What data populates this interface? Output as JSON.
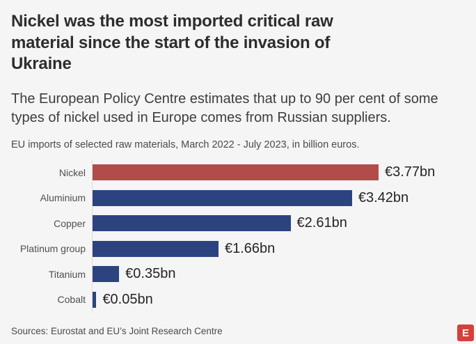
{
  "header": {
    "title": "Nickel was the most imported critical raw material since the start of the invasion of Ukraine",
    "subtitle": "The European Policy Centre estimates that up to 90 per cent of some types of nickel used in Europe comes from Russian suppliers.",
    "note": "EU imports of selected raw materials, March 2022 - July 2023, in billion euros."
  },
  "chart_data": {
    "type": "bar",
    "orientation": "horizontal",
    "categories": [
      "Nickel",
      "Aluminium",
      "Copper",
      "Platinum group",
      "Titanium",
      "Cobalt"
    ],
    "values": [
      3.77,
      3.42,
      2.61,
      1.66,
      0.35,
      0.05
    ],
    "value_labels": [
      "€3.77bn",
      "€3.42bn",
      "€2.61bn",
      "€1.66bn",
      "€0.35bn",
      "€0.05bn"
    ],
    "unit": "billion euros",
    "xlim": [
      0,
      3.77
    ],
    "grid": false,
    "legend": false,
    "highlight_index": 0,
    "highlight_color": "#b24c4a",
    "bar_color": "#2d4380",
    "axis_color": "#dcdcdc"
  },
  "footer": {
    "sources": "Sources: Eurostat and EU’s Joint Research Centre",
    "logo_letter": "E",
    "logo_color": "#d4403b"
  }
}
